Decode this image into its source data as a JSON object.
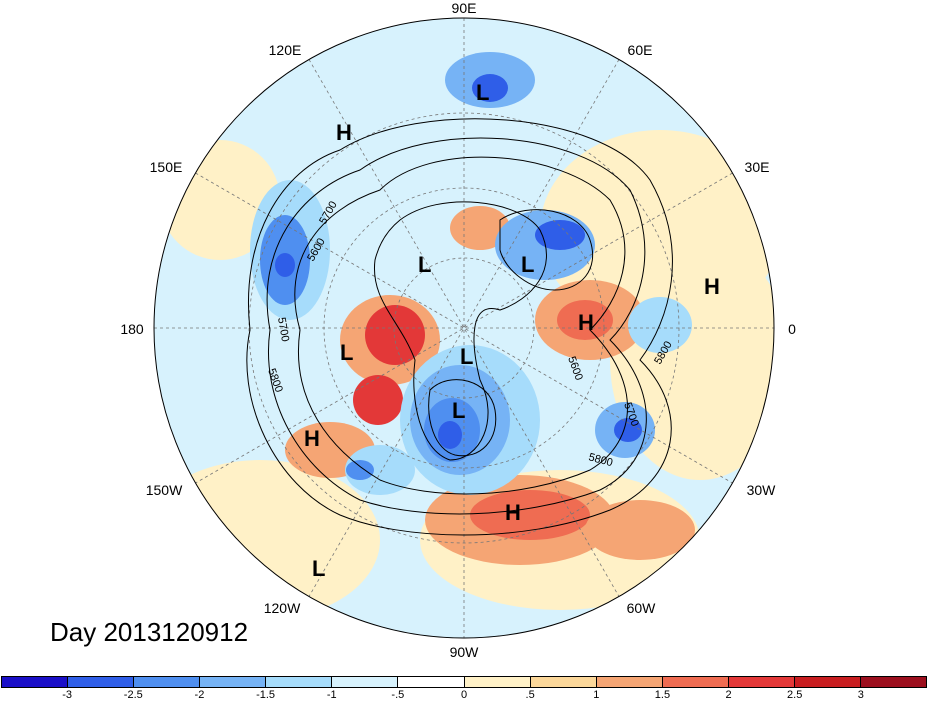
{
  "title": "Day 2013120912",
  "longitude_labels": [
    "90E",
    "60E",
    "30E",
    "0",
    "30W",
    "60W",
    "90W",
    "120W",
    "150W",
    "180",
    "150E",
    "120E"
  ],
  "contour_labels": [
    "5600",
    "5700",
    "5800",
    "5600",
    "5700",
    "5800",
    "5700",
    "5800"
  ],
  "pressure_centers": [
    {
      "type": "L"
    },
    {
      "type": "H"
    },
    {
      "type": "L"
    },
    {
      "type": "L"
    },
    {
      "type": "H"
    },
    {
      "type": "H"
    },
    {
      "type": "L"
    },
    {
      "type": "L"
    },
    {
      "type": "L"
    },
    {
      "type": "H"
    },
    {
      "type": "H"
    },
    {
      "type": "L"
    }
  ],
  "colorbar": {
    "labels": [
      "-3",
      "-2.5",
      "-2",
      "-1.5",
      "-1",
      "-.5",
      "0",
      ".5",
      "1",
      "1.5",
      "2",
      "2.5",
      "3"
    ],
    "colors": [
      "#1a0fc8",
      "#2f5ee8",
      "#4f8ff0",
      "#76b3f5",
      "#a6dcfb",
      "#d7f2fd",
      "#ffffff",
      "#fff1c7",
      "#fbd79a",
      "#f5a574",
      "#ef6c52",
      "#e33838",
      "#c81d20",
      "#9c0f1e"
    ]
  },
  "colors": {
    "ocean_neutral": "#d7f2fd",
    "warm": "#f5a574",
    "cold": "#4f8ff0"
  }
}
